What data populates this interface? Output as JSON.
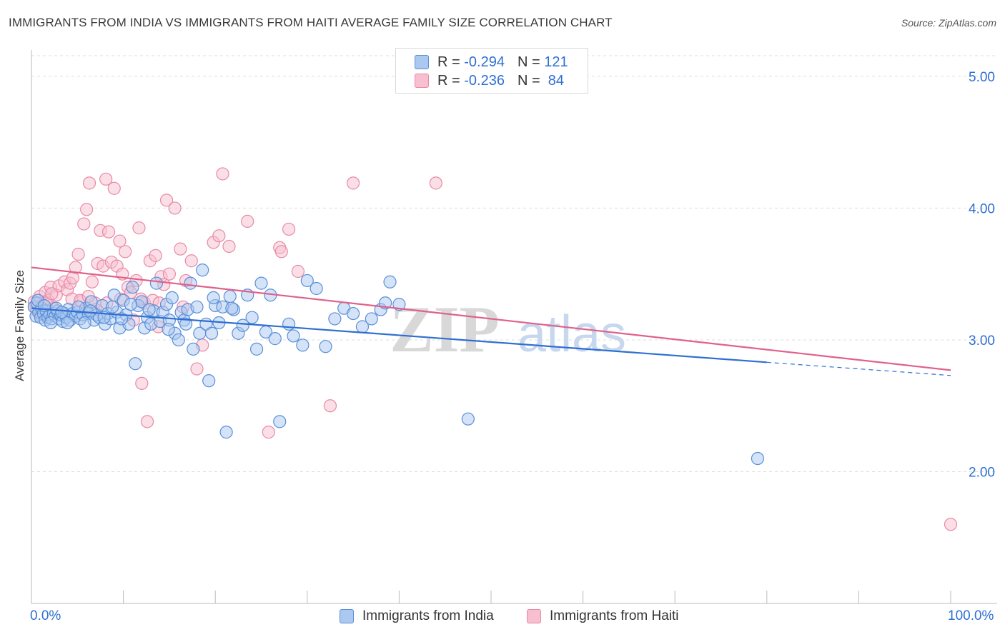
{
  "header": {
    "title": "IMMIGRANTS FROM INDIA VS IMMIGRANTS FROM HAITI AVERAGE FAMILY SIZE CORRELATION CHART",
    "source": "Source: ZipAtlas.com"
  },
  "watermark": {
    "zip": "ZIP",
    "atlas": "atlas"
  },
  "legend_top": {
    "india": {
      "r_label": "R =",
      "r_value": "-0.294",
      "n_label": "N =",
      "n_value": "121"
    },
    "haiti": {
      "r_label": "R =",
      "r_value": "-0.236",
      "n_label": "N =",
      "n_value": "84"
    }
  },
  "colors": {
    "india_fill": "#aac8f0",
    "india_stroke": "#5a8fd8",
    "india_line": "#2e6fd1",
    "haiti_fill": "#f7bfd0",
    "haiti_stroke": "#e889a8",
    "haiti_line": "#e0608a",
    "axis_text": "#2e6fd1",
    "grid": "#dddddd"
  },
  "chart_data": {
    "type": "scatter",
    "title": "IMMIGRANTS FROM INDIA VS IMMIGRANTS FROM HAITI AVERAGE FAMILY SIZE CORRELATION CHART",
    "xlabel": "",
    "ylabel": "Average Family Size",
    "xlim": [
      0,
      100
    ],
    "ylim": [
      1.0,
      5.2
    ],
    "x_tick_labels": [
      "0.0%",
      "100.0%"
    ],
    "y_ticks": [
      2.0,
      3.0,
      4.0,
      5.0
    ],
    "y_tick_labels": [
      "2.00",
      "3.00",
      "4.00",
      "5.00"
    ],
    "grid": true,
    "legend_position": "bottom",
    "series": [
      {
        "name": "Immigrants from India",
        "trend": {
          "x": [
            0,
            80,
            100
          ],
          "y": [
            3.24,
            2.83,
            2.73
          ],
          "solid_until": 80
        },
        "points": [
          [
            0.3,
            3.25
          ],
          [
            0.5,
            3.18
          ],
          [
            0.6,
            3.28
          ],
          [
            0.8,
            3.21
          ],
          [
            1.0,
            3.17
          ],
          [
            1.1,
            3.24
          ],
          [
            1.3,
            3.2
          ],
          [
            1.5,
            3.15
          ],
          [
            1.6,
            3.22
          ],
          [
            1.8,
            3.17
          ],
          [
            2.0,
            3.19
          ],
          [
            2.2,
            3.16
          ],
          [
            2.4,
            3.2
          ],
          [
            2.6,
            3.18
          ],
          [
            2.8,
            3.22
          ],
          [
            3.0,
            3.16
          ],
          [
            3.2,
            3.19
          ],
          [
            3.4,
            3.14
          ],
          [
            3.6,
            3.2
          ],
          [
            3.8,
            3.17
          ],
          [
            4.0,
            3.23
          ],
          [
            4.2,
            3.15
          ],
          [
            4.5,
            3.2
          ],
          [
            4.8,
            3.18
          ],
          [
            5.0,
            3.21
          ],
          [
            5.3,
            3.16
          ],
          [
            5.6,
            3.19
          ],
          [
            5.9,
            3.24
          ],
          [
            6.2,
            3.2
          ],
          [
            6.5,
            3.29
          ],
          [
            6.8,
            3.15
          ],
          [
            7.1,
            3.19
          ],
          [
            7.4,
            3.17
          ],
          [
            7.7,
            3.26
          ],
          [
            8.0,
            3.12
          ],
          [
            8.3,
            3.2
          ],
          [
            8.6,
            3.16
          ],
          [
            9.0,
            3.34
          ],
          [
            9.3,
            3.21
          ],
          [
            9.6,
            3.09
          ],
          [
            10.0,
            3.3
          ],
          [
            10.3,
            3.19
          ],
          [
            10.6,
            3.12
          ],
          [
            11.0,
            3.4
          ],
          [
            11.3,
            2.82
          ],
          [
            11.6,
            3.26
          ],
          [
            12.0,
            3.29
          ],
          [
            12.3,
            3.09
          ],
          [
            12.6,
            3.17
          ],
          [
            13.0,
            3.12
          ],
          [
            13.3,
            3.22
          ],
          [
            13.6,
            3.43
          ],
          [
            14.0,
            3.14
          ],
          [
            14.3,
            3.21
          ],
          [
            14.7,
            3.27
          ],
          [
            15.0,
            3.15
          ],
          [
            15.3,
            3.32
          ],
          [
            15.6,
            3.05
          ],
          [
            16.0,
            3.0
          ],
          [
            16.3,
            3.21
          ],
          [
            16.6,
            3.15
          ],
          [
            17.0,
            3.23
          ],
          [
            17.3,
            3.43
          ],
          [
            17.6,
            2.93
          ],
          [
            18.0,
            3.25
          ],
          [
            18.3,
            3.05
          ],
          [
            18.6,
            3.53
          ],
          [
            19.0,
            3.12
          ],
          [
            19.3,
            2.69
          ],
          [
            19.6,
            3.05
          ],
          [
            20.0,
            3.26
          ],
          [
            20.4,
            3.13
          ],
          [
            20.8,
            3.25
          ],
          [
            21.2,
            2.3
          ],
          [
            21.6,
            3.33
          ],
          [
            22.0,
            3.23
          ],
          [
            22.5,
            3.05
          ],
          [
            23.0,
            3.11
          ],
          [
            23.5,
            3.34
          ],
          [
            24.0,
            3.17
          ],
          [
            24.5,
            2.93
          ],
          [
            25.0,
            3.43
          ],
          [
            25.5,
            3.06
          ],
          [
            26.0,
            3.34
          ],
          [
            26.5,
            3.01
          ],
          [
            27.0,
            2.38
          ],
          [
            28.0,
            3.12
          ],
          [
            28.5,
            3.03
          ],
          [
            29.5,
            2.96
          ],
          [
            30.0,
            3.45
          ],
          [
            31.0,
            3.39
          ],
          [
            32.0,
            2.95
          ],
          [
            33.0,
            3.16
          ],
          [
            34.0,
            3.24
          ],
          [
            35.0,
            3.2
          ],
          [
            36.0,
            3.1
          ],
          [
            37.0,
            3.16
          ],
          [
            38.0,
            3.23
          ],
          [
            38.5,
            3.28
          ],
          [
            39.0,
            3.44
          ],
          [
            0.7,
            3.3
          ],
          [
            1.4,
            3.26
          ],
          [
            2.1,
            3.13
          ],
          [
            2.7,
            3.24
          ],
          [
            3.3,
            3.21
          ],
          [
            3.9,
            3.13
          ],
          [
            5.1,
            3.25
          ],
          [
            5.8,
            3.13
          ],
          [
            6.4,
            3.22
          ],
          [
            7.9,
            3.17
          ],
          [
            8.8,
            3.25
          ],
          [
            9.8,
            3.16
          ],
          [
            10.8,
            3.27
          ],
          [
            12.8,
            3.23
          ],
          [
            14.9,
            3.08
          ],
          [
            16.8,
            3.12
          ],
          [
            19.8,
            3.32
          ],
          [
            21.8,
            3.24
          ],
          [
            40.0,
            3.27
          ],
          [
            47.5,
            2.4
          ],
          [
            79.0,
            2.1
          ]
        ]
      },
      {
        "name": "Immigrants from Haiti",
        "trend": {
          "x": [
            0,
            100
          ],
          "y": [
            3.55,
            2.77
          ]
        },
        "points": [
          [
            0.3,
            3.29
          ],
          [
            0.6,
            3.22
          ],
          [
            0.9,
            3.33
          ],
          [
            1.2,
            3.26
          ],
          [
            1.5,
            3.36
          ],
          [
            1.8,
            3.3
          ],
          [
            2.1,
            3.4
          ],
          [
            2.4,
            3.24
          ],
          [
            2.7,
            3.34
          ],
          [
            3.0,
            3.41
          ],
          [
            3.3,
            3.2
          ],
          [
            3.6,
            3.44
          ],
          [
            3.9,
            3.38
          ],
          [
            4.2,
            3.43
          ],
          [
            4.5,
            3.47
          ],
          [
            4.8,
            3.55
          ],
          [
            5.1,
            3.65
          ],
          [
            5.4,
            3.29
          ],
          [
            5.7,
            3.88
          ],
          [
            6.0,
            3.99
          ],
          [
            6.3,
            4.19
          ],
          [
            6.6,
            3.44
          ],
          [
            6.9,
            3.28
          ],
          [
            7.2,
            3.58
          ],
          [
            7.5,
            3.83
          ],
          [
            7.8,
            3.56
          ],
          [
            8.1,
            4.22
          ],
          [
            8.4,
            3.82
          ],
          [
            8.7,
            3.59
          ],
          [
            9.0,
            4.15
          ],
          [
            9.3,
            3.56
          ],
          [
            9.6,
            3.75
          ],
          [
            9.9,
            3.5
          ],
          [
            10.2,
            3.67
          ],
          [
            10.5,
            3.4
          ],
          [
            10.8,
            3.36
          ],
          [
            11.1,
            3.15
          ],
          [
            11.4,
            3.45
          ],
          [
            11.7,
            3.85
          ],
          [
            12.0,
            2.67
          ],
          [
            12.3,
            3.28
          ],
          [
            12.6,
            2.38
          ],
          [
            12.9,
            3.6
          ],
          [
            13.2,
            3.3
          ],
          [
            13.5,
            3.64
          ],
          [
            13.8,
            3.1
          ],
          [
            14.1,
            3.48
          ],
          [
            14.4,
            3.42
          ],
          [
            14.7,
            4.06
          ],
          [
            15.0,
            3.5
          ],
          [
            15.6,
            4.0
          ],
          [
            16.2,
            3.69
          ],
          [
            16.8,
            3.45
          ],
          [
            17.4,
            3.6
          ],
          [
            18.0,
            2.78
          ],
          [
            18.6,
            2.96
          ],
          [
            19.8,
            3.74
          ],
          [
            20.4,
            3.79
          ],
          [
            20.8,
            4.26
          ],
          [
            21.5,
            3.71
          ],
          [
            23.5,
            3.9
          ],
          [
            25.8,
            2.3
          ],
          [
            27.0,
            3.7
          ],
          [
            28.0,
            3.84
          ],
          [
            29.0,
            3.52
          ],
          [
            32.5,
            2.5
          ],
          [
            35.0,
            4.19
          ],
          [
            44.0,
            4.19
          ],
          [
            0.5,
            3.24
          ],
          [
            1.0,
            3.19
          ],
          [
            1.6,
            3.28
          ],
          [
            2.2,
            3.35
          ],
          [
            3.5,
            3.18
          ],
          [
            4.4,
            3.31
          ],
          [
            5.3,
            3.3
          ],
          [
            6.2,
            3.33
          ],
          [
            7.0,
            3.23
          ],
          [
            8.2,
            3.28
          ],
          [
            9.7,
            3.31
          ],
          [
            11.9,
            3.31
          ],
          [
            13.9,
            3.28
          ],
          [
            16.5,
            3.25
          ],
          [
            27.2,
            3.67
          ],
          [
            100.0,
            1.6
          ]
        ]
      }
    ]
  },
  "x_axis": {
    "left_label": "0.0%",
    "right_label": "100.0%"
  },
  "bottom_legend": {
    "india": "Immigrants from India",
    "haiti": "Immigrants from Haiti"
  }
}
